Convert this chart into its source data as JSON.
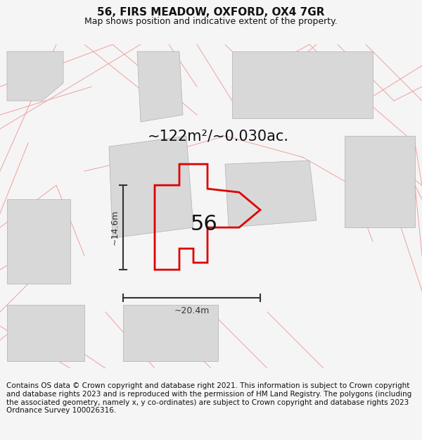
{
  "title": "56, FIRS MEADOW, OXFORD, OX4 7GR",
  "subtitle": "Map shows position and indicative extent of the property.",
  "area_label": "~122m²/~0.030ac.",
  "number_label": "56",
  "dim_width": "~20.4m",
  "dim_height": "~14.6m",
  "footer": "Contains OS data © Crown copyright and database right 2021. This information is subject to Crown copyright and database rights 2023 and is reproduced with the permission of HM Land Registry. The polygons (including the associated geometry, namely x, y co-ordinates) are subject to Crown copyright and database rights 2023 Ordnance Survey 100026316.",
  "bg_color": "#f5f5f5",
  "map_bg": "#ffffff",
  "main_poly_color": "#dd0000",
  "gray_fill": "#d8d8d8",
  "parcel_line_color": "#f0a0a0",
  "dim_color": "#333333",
  "title_fontsize": 11,
  "subtitle_fontsize": 9,
  "area_fontsize": 15,
  "number_fontsize": 22,
  "footer_fontsize": 7.5,
  "title_color": "#111111",
  "footer_color": "#111111"
}
